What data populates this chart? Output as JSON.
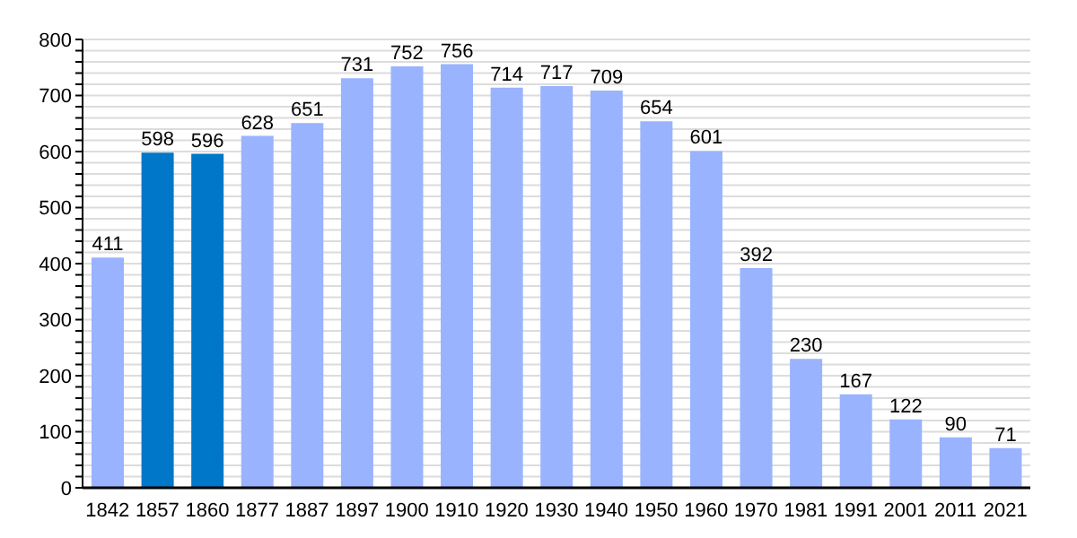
{
  "chart_data": {
    "type": "bar",
    "categories": [
      "1842",
      "1857",
      "1860",
      "1877",
      "1887",
      "1897",
      "1900",
      "1910",
      "1920",
      "1930",
      "1940",
      "1950",
      "1960",
      "1970",
      "1981",
      "1991",
      "2001",
      "2011",
      "2021"
    ],
    "values": [
      411,
      598,
      596,
      628,
      651,
      731,
      752,
      756,
      714,
      717,
      709,
      654,
      601,
      392,
      230,
      167,
      122,
      90,
      71
    ],
    "colors": [
      "#99b3ff",
      "#0077c8",
      "#0077c8",
      "#99b3ff",
      "#99b3ff",
      "#99b3ff",
      "#99b3ff",
      "#99b3ff",
      "#99b3ff",
      "#99b3ff",
      "#99b3ff",
      "#99b3ff",
      "#99b3ff",
      "#99b3ff",
      "#99b3ff",
      "#99b3ff",
      "#99b3ff",
      "#99b3ff",
      "#99b3ff"
    ],
    "data_labels": true,
    "ylim": [
      0,
      800
    ],
    "yticks": [
      0,
      {
        "value": 20,
        "label": null
      },
      {
        "value": 40,
        "label": null
      },
      {
        "value": 60,
        "label": null
      },
      {
        "value": 80,
        "label": null
      },
      100,
      {
        "value": 120,
        "label": null
      },
      {
        "value": 140,
        "label": null
      },
      {
        "value": 160,
        "label": null
      },
      {
        "value": 180,
        "label": null
      },
      200,
      {
        "value": 220,
        "label": null
      },
      {
        "value": 240,
        "label": null
      },
      {
        "value": 260,
        "label": null
      },
      {
        "value": 280,
        "label": null
      },
      300,
      {
        "value": 320,
        "label": null
      },
      {
        "value": 340,
        "label": null
      },
      {
        "value": 360,
        "label": null
      },
      {
        "value": 380,
        "label": null
      },
      400,
      {
        "value": 420,
        "label": null
      },
      {
        "value": 440,
        "label": null
      },
      {
        "value": 460,
        "label": null
      },
      {
        "value": 480,
        "label": null
      },
      500,
      {
        "value": 520,
        "label": null
      },
      {
        "value": 540,
        "label": null
      },
      {
        "value": 560,
        "label": null
      },
      {
        "value": 580,
        "label": null
      },
      600,
      {
        "value": 620,
        "label": null
      },
      {
        "value": 640,
        "label": null
      },
      {
        "value": 660,
        "label": null
      },
      {
        "value": 680,
        "label": null
      },
      700,
      {
        "value": 720,
        "label": null
      },
      {
        "value": 740,
        "label": null
      },
      {
        "value": 760,
        "label": null
      },
      {
        "value": 780,
        "label": null
      },
      800
    ],
    "grid": "y"
  }
}
